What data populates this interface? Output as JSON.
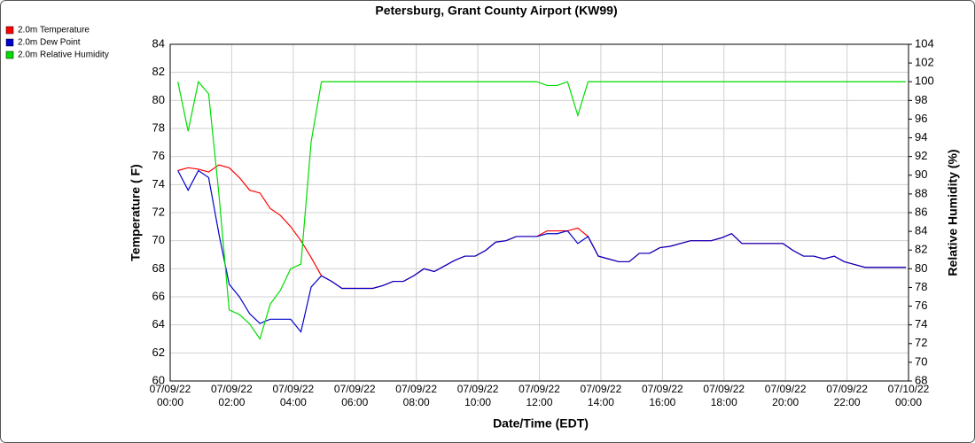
{
  "chart_data": {
    "type": "line",
    "title": "Petersburg, Grant County Airport (KW99)",
    "xlabel": "Date/Time (EDT)",
    "ylabel": "Temperature ( F)",
    "y2label": "Relative Humidity (%)",
    "x": [
      0.25,
      0.583,
      0.917,
      1.25,
      1.583,
      1.917,
      2.25,
      2.583,
      2.917,
      3.25,
      3.583,
      3.917,
      4.25,
      4.583,
      4.917,
      5.25,
      5.583,
      5.917,
      6.25,
      6.583,
      6.917,
      7.25,
      7.583,
      7.917,
      8.25,
      8.583,
      8.917,
      9.25,
      9.583,
      9.917,
      10.25,
      10.583,
      10.917,
      11.25,
      11.583,
      11.917,
      12.25,
      12.583,
      12.917,
      13.25,
      13.583,
      13.917,
      14.25,
      14.583,
      14.917,
      15.25,
      15.583,
      15.917,
      16.25,
      16.583,
      16.917,
      17.25,
      17.583,
      17.917,
      18.25,
      18.583,
      18.917,
      19.25,
      19.583,
      19.917,
      20.25,
      20.583,
      20.917,
      21.25,
      21.583,
      21.917,
      22.25,
      22.583,
      22.917,
      23.25,
      23.583,
      23.917
    ],
    "series": [
      {
        "name": "2.0m Temperature",
        "color": "#ff0000",
        "values": [
          75.0,
          75.2,
          75.1,
          74.9,
          75.4,
          75.2,
          74.5,
          73.6,
          73.4,
          72.3,
          71.8,
          71.0,
          70.0,
          68.8,
          67.5,
          67.1,
          66.6,
          66.6,
          66.6,
          66.6,
          66.8,
          67.1,
          67.1,
          67.5,
          68.0,
          67.8,
          68.2,
          68.6,
          68.9,
          68.9,
          69.3,
          69.9,
          70.0,
          70.3,
          70.3,
          70.3,
          70.7,
          70.7,
          70.7,
          70.9,
          70.3,
          68.9,
          68.7,
          68.5,
          68.5,
          69.1,
          69.1,
          69.5,
          69.6,
          69.8,
          70.0,
          70.0,
          70.0,
          70.2,
          70.5,
          69.8,
          69.8,
          69.8,
          69.8,
          69.8,
          69.3,
          68.9,
          68.9,
          68.7,
          68.9,
          68.5,
          68.3,
          68.1,
          68.1,
          68.1,
          68.1,
          68.1
        ]
      },
      {
        "name": "2.0m Dew Point",
        "color": "#0000cc",
        "values": [
          75.0,
          73.6,
          75.0,
          74.5,
          70.5,
          66.9,
          66.0,
          64.8,
          64.1,
          64.4,
          64.4,
          64.4,
          63.5,
          66.7,
          67.5,
          67.1,
          66.6,
          66.6,
          66.6,
          66.6,
          66.8,
          67.1,
          67.1,
          67.5,
          68.0,
          67.8,
          68.2,
          68.6,
          68.9,
          68.9,
          69.3,
          69.9,
          70.0,
          70.3,
          70.3,
          70.3,
          70.5,
          70.5,
          70.7,
          69.8,
          70.3,
          68.9,
          68.7,
          68.5,
          68.5,
          69.1,
          69.1,
          69.5,
          69.6,
          69.8,
          70.0,
          70.0,
          70.0,
          70.2,
          70.5,
          69.8,
          69.8,
          69.8,
          69.8,
          69.8,
          69.3,
          68.9,
          68.9,
          68.7,
          68.9,
          68.5,
          68.3,
          68.1,
          68.1,
          68.1,
          68.1,
          68.1
        ]
      },
      {
        "name": "2.0m Relative Humidity",
        "color": "#00dd00",
        "axis": "y2",
        "values": [
          100,
          94.7,
          100,
          98.7,
          88,
          75.6,
          75.1,
          74.1,
          72.5,
          76.2,
          77.7,
          80.0,
          80.5,
          93.6,
          100,
          100,
          100,
          100,
          100,
          100,
          100,
          100,
          100,
          100,
          100,
          100,
          100,
          100,
          100,
          100,
          100,
          100,
          100,
          100,
          100,
          100,
          99.6,
          99.6,
          100,
          96.4,
          100,
          100,
          100,
          100,
          100,
          100,
          100,
          100,
          100,
          100,
          100,
          100,
          100,
          100,
          100,
          100,
          100,
          100,
          100,
          100,
          100,
          100,
          100,
          100,
          100,
          100,
          100,
          100,
          100,
          100,
          100,
          100
        ]
      }
    ],
    "xlim": [
      0,
      24
    ],
    "xticks": [
      {
        "value": 0,
        "label": "07/09/22 00:00"
      },
      {
        "value": 2,
        "label": "07/09/22 02:00"
      },
      {
        "value": 4,
        "label": "07/09/22 04:00"
      },
      {
        "value": 6,
        "label": "07/09/22 06:00"
      },
      {
        "value": 8,
        "label": "07/09/22 08:00"
      },
      {
        "value": 10,
        "label": "07/09/22 10:00"
      },
      {
        "value": 12,
        "label": "07/09/22 12:00"
      },
      {
        "value": 14,
        "label": "07/09/22 14:00"
      },
      {
        "value": 16,
        "label": "07/09/22 16:00"
      },
      {
        "value": 18,
        "label": "07/09/22 18:00"
      },
      {
        "value": 20,
        "label": "07/09/22 20:00"
      },
      {
        "value": 22,
        "label": "07/09/22 22:00"
      },
      {
        "value": 24,
        "label": "07/10/22 00:00"
      }
    ],
    "ylim": [
      60,
      84
    ],
    "yticks": [
      60,
      62,
      64,
      66,
      68,
      70,
      72,
      74,
      76,
      78,
      80,
      82,
      84
    ],
    "y2lim": [
      68,
      104
    ],
    "y2ticks": [
      68,
      70,
      72,
      74,
      76,
      78,
      80,
      82,
      84,
      86,
      88,
      90,
      92,
      94,
      96,
      98,
      100,
      102,
      104
    ],
    "grid": true,
    "legend": "top-left"
  }
}
